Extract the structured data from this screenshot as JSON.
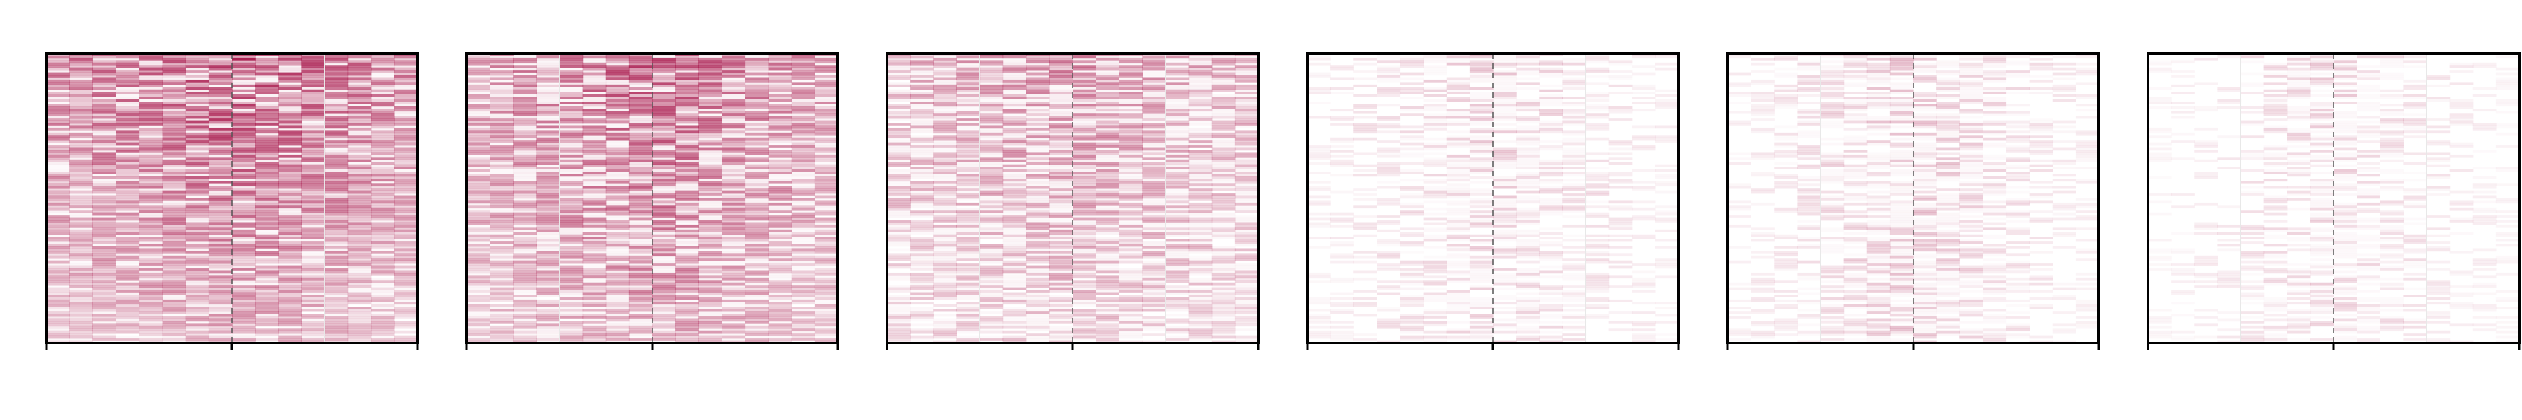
{
  "chart_data": {
    "type": "heatmap",
    "title": "",
    "xlabel": "",
    "ylabel": "",
    "grid": true,
    "colors": {
      "high": "#a50f45",
      "low": "#ffffff",
      "frame": "#000000",
      "center_line": "#555555"
    },
    "panels": [
      {
        "name": "",
        "intensity": 0.78,
        "row_decay": 0.55,
        "center_peak": 0.35,
        "density": 0.85
      },
      {
        "name": "",
        "intensity": 0.7,
        "row_decay": 0.45,
        "center_peak": 0.4,
        "density": 0.75
      },
      {
        "name": "",
        "intensity": 0.5,
        "row_decay": 0.5,
        "center_peak": 0.35,
        "density": 0.6
      },
      {
        "name": "",
        "intensity": 0.22,
        "row_decay": 0.2,
        "center_peak": 0.7,
        "density": 0.35
      },
      {
        "name": "",
        "intensity": 0.25,
        "row_decay": 0.15,
        "center_peak": 0.75,
        "density": 0.35
      },
      {
        "name": "",
        "intensity": 0.2,
        "row_decay": 0.15,
        "center_peak": 0.8,
        "density": 0.3
      }
    ],
    "rows": 120,
    "x_ticks": 3,
    "center_marker": true
  }
}
